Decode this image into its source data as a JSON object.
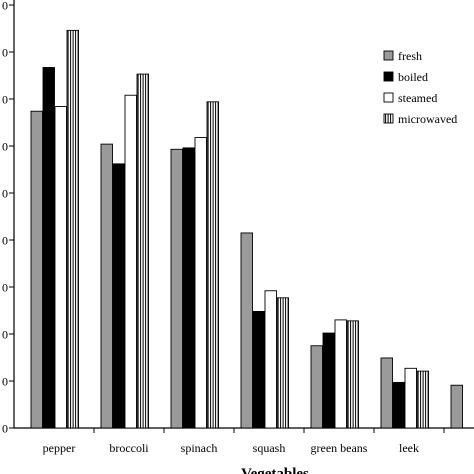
{
  "chart_data": {
    "type": "bar",
    "categories": [
      "pepper",
      "broccoli",
      "spinach",
      "squash",
      "green beans",
      "leek",
      ""
    ],
    "series": [
      {
        "name": "fresh",
        "fill": "#9a9a9a",
        "pattern": "solid",
        "values": [
          674,
          604,
          593,
          415,
          175,
          149,
          91
        ]
      },
      {
        "name": "boiled",
        "fill": "#000000",
        "pattern": "solid",
        "values": [
          767,
          562,
          596,
          248,
          202,
          97,
          null
        ]
      },
      {
        "name": "steamed",
        "fill": "#ffffff",
        "pattern": "solid",
        "values": [
          684,
          708,
          618,
          292,
          230,
          127,
          null
        ]
      },
      {
        "name": "microwaved",
        "fill": "#ffffff",
        "pattern": "vertical-stripes",
        "values": [
          846,
          753,
          694,
          277,
          228,
          121,
          null
        ]
      }
    ],
    "xlabel": "Vegetables",
    "ylim": [
      0,
      900
    ],
    "yticks": [
      0,
      100,
      200,
      300,
      400,
      500,
      600,
      700,
      800,
      900
    ],
    "ytick_labels": [
      "0",
      "0",
      "0",
      "0",
      "0",
      "0",
      "0",
      "0",
      "0",
      "0"
    ],
    "legend_position": "right",
    "grid": false
  }
}
